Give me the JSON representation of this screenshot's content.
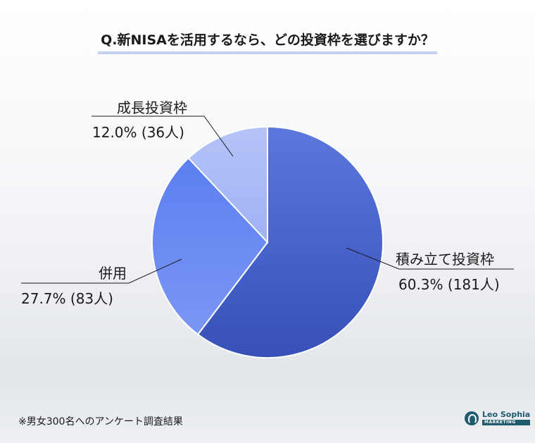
{
  "title": "Q.新NISAを活用するなら、どの投資枠を選びますか？",
  "footnote": "※男女300名へのアンケート調査結果",
  "logo": {
    "name": "Leo Sophia",
    "sub": "MARKETING"
  },
  "chart_data": {
    "type": "pie",
    "title": "Q.新NISAを活用するなら、どの投資枠を選びますか？",
    "slices": [
      {
        "label": "積み立て投資枠",
        "percent": 60.3,
        "count_text": "(181人)",
        "percent_text": "60.3%",
        "color": "#4a65cf"
      },
      {
        "label": "併用",
        "percent": 27.7,
        "count_text": "(83人)",
        "percent_text": "27.7%",
        "color": "#6b88ee"
      },
      {
        "label": "成長投資枠",
        "percent": 12.0,
        "count_text": "(36人)",
        "percent_text": "12.0%",
        "color": "#a8b9f7"
      }
    ]
  }
}
